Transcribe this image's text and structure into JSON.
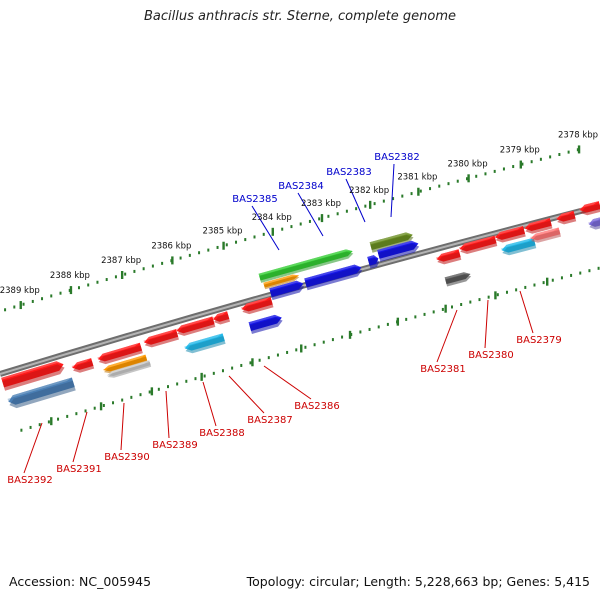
{
  "title": "Bacillus anthracis str. Sterne, complete genome",
  "footer": {
    "accession": "Accession: NC_005945",
    "summary": "Topology: circular; Length: 5,228,663 bp; Genes: 5,415"
  },
  "tick_labels": [
    "2378 kbp",
    "2379 kbp",
    "2380 kbp",
    "2381 kbp",
    "2382 kbp",
    "2383 kbp",
    "2384 kbp",
    "2385 kbp",
    "2386 kbp",
    "2387 kbp",
    "2388 kbp",
    "2389 kbp"
  ],
  "gene_labels_top": [
    "BAS2382",
    "BAS2383",
    "BAS2384",
    "BAS2385"
  ],
  "gene_labels_bottom": [
    "BAS2379",
    "BAS2380",
    "BAS2381",
    "BAS2386",
    "BAS2387",
    "BAS2388",
    "BAS2389",
    "BAS2390",
    "BAS2391",
    "BAS2392"
  ],
  "colors": {
    "label_top": "#0000cc",
    "label_bottom": "#cc0000",
    "tick": "#2a7a2a",
    "backbone": "#808080",
    "red": "#ff1a1a",
    "blue": "#1414e6",
    "green": "#33cc33",
    "olive": "#6b8e23",
    "orange": "#ff9900",
    "cyan": "#22b8e8",
    "steel": "#4a7fb5",
    "gray": "#5a5a5a",
    "pink": "#ff7777",
    "purple": "#7a6ad8"
  }
}
